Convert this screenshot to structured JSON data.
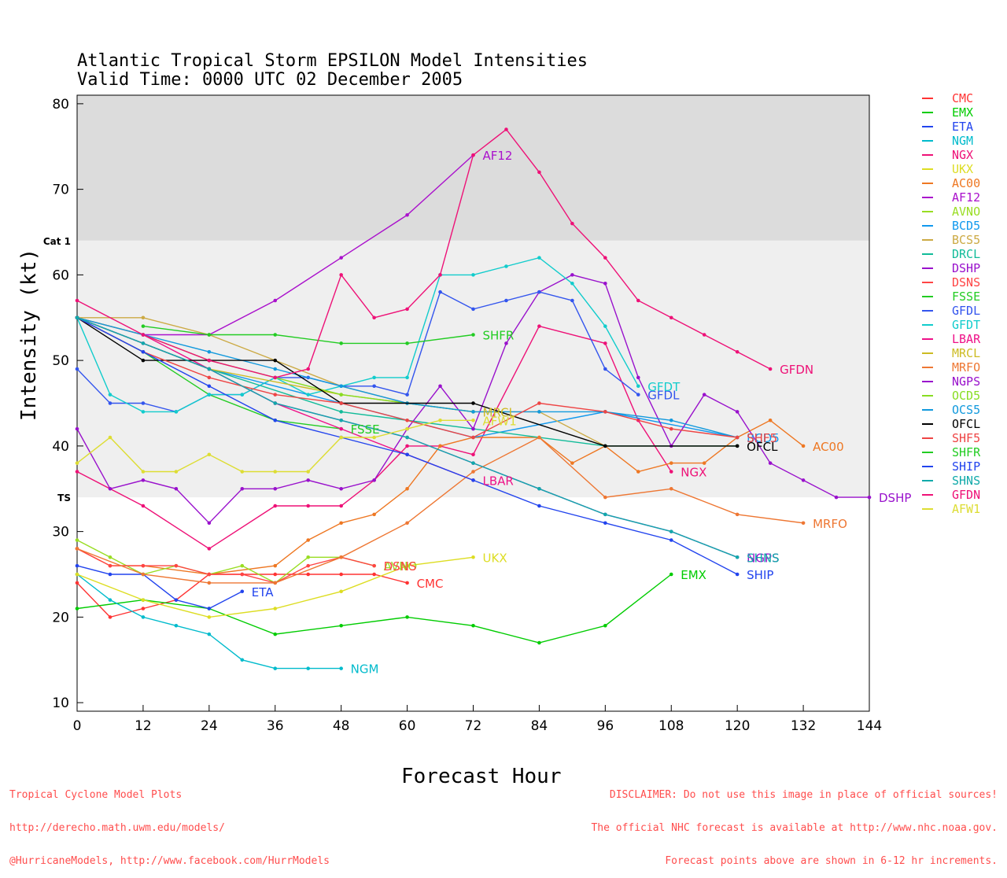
{
  "title": {
    "line1": "Atlantic Tropical Storm EPSILON Model Intensities",
    "line2": "Valid Time: 0000 UTC 02 December 2005"
  },
  "footer": {
    "left": [
      "Tropical Cyclone Model Plots",
      "http://derecho.math.uwm.edu/models/",
      "@HurricaneModels, http://www.facebook.com/HurrModels"
    ],
    "right": [
      "DISCLAIMER: Do not use this image in place of official sources!",
      "The official NHC forecast is available at http://www.nhc.noaa.gov.",
      "Forecast points above are shown in 6-12 hr increments."
    ]
  },
  "chart_data": {
    "type": "line",
    "title": "Atlantic Tropical Storm EPSILON Model Intensities",
    "xlabel": "Forecast Hour",
    "ylabel": "Intensity (kt)",
    "xlim": [
      0,
      144
    ],
    "ylim": [
      9,
      81
    ],
    "xticks": [
      0,
      12,
      24,
      36,
      48,
      60,
      72,
      84,
      96,
      108,
      120,
      132,
      144
    ],
    "yticks": [
      10,
      20,
      30,
      40,
      50,
      60,
      70,
      80
    ],
    "bands": [
      {
        "label": "Cat 1",
        "from": 64,
        "to": 81,
        "color": "#dcdcdc"
      },
      {
        "label": "TS",
        "from": 34,
        "to": 64,
        "color": "#efefef"
      }
    ],
    "grid": false,
    "legend_position": "right",
    "series": [
      {
        "name": "CMC",
        "color": "#ff3333",
        "x": [
          0,
          6,
          12,
          18,
          24,
          30,
          36,
          42,
          48,
          54,
          60
        ],
        "y": [
          24,
          20,
          21,
          22,
          25,
          25,
          25,
          25,
          25,
          25,
          24
        ]
      },
      {
        "name": "EMX",
        "color": "#00cc00",
        "x": [
          0,
          12,
          24,
          36,
          48,
          60,
          72,
          84,
          96,
          108
        ],
        "y": [
          21,
          22,
          21,
          18,
          19,
          20,
          19,
          17,
          19,
          25
        ]
      },
      {
        "name": "ETA",
        "color": "#2244ee",
        "x": [
          0,
          6,
          12,
          18,
          24,
          30
        ],
        "y": [
          26,
          25,
          25,
          22,
          21,
          23
        ]
      },
      {
        "name": "NGM",
        "color": "#00bbcc",
        "x": [
          0,
          6,
          12,
          18,
          24,
          30,
          36,
          42,
          48
        ],
        "y": [
          25,
          22,
          20,
          19,
          18,
          15,
          14,
          14,
          14
        ]
      },
      {
        "name": "NGX",
        "color": "#ee1177",
        "x": [
          0,
          12,
          24,
          36,
          42,
          48,
          54,
          60,
          66,
          72,
          84,
          96,
          102,
          108
        ],
        "y": [
          37,
          33,
          28,
          33,
          33,
          33,
          36,
          40,
          40,
          39,
          54,
          52,
          43,
          37
        ]
      },
      {
        "name": "UKX",
        "color": "#dddd22",
        "x": [
          0,
          12,
          24,
          36,
          48,
          60,
          72
        ],
        "y": [
          25,
          22,
          20,
          21,
          23,
          26,
          27
        ]
      },
      {
        "name": "AC00",
        "color": "#ee7722",
        "x": [
          0,
          6,
          12,
          24,
          36,
          42,
          48,
          54,
          60,
          66,
          72,
          84,
          90,
          96,
          102,
          108,
          114,
          120,
          126,
          132
        ],
        "y": [
          28,
          26,
          26,
          25,
          26,
          29,
          31,
          32,
          35,
          40,
          41,
          41,
          38,
          40,
          37,
          38,
          38,
          41,
          43,
          40
        ]
      },
      {
        "name": "AF12",
        "color": "#aa11cc",
        "x": [
          0,
          12,
          24,
          36,
          48,
          60,
          72
        ],
        "y": [
          55,
          53,
          53,
          57,
          62,
          67,
          74
        ]
      },
      {
        "name": "AVNO",
        "color": "#99dd22",
        "x": [
          0,
          6,
          12,
          18,
          24,
          30,
          36,
          42,
          48,
          54
        ],
        "y": [
          29,
          27,
          25,
          26,
          25,
          26,
          24,
          27,
          27,
          26
        ]
      },
      {
        "name": "BCD5",
        "color": "#1199ee",
        "x": [
          0,
          24,
          48,
          72,
          96,
          120
        ],
        "y": [
          55,
          49,
          45,
          41,
          44,
          41
        ]
      },
      {
        "name": "BCS5",
        "color": "#ccaa44",
        "x": [
          0,
          12,
          24,
          36,
          48,
          60,
          72,
          84,
          96,
          120
        ],
        "y": [
          55,
          55,
          53,
          50,
          47,
          45,
          44,
          44,
          40,
          40
        ]
      },
      {
        "name": "DRCL",
        "color": "#11bb99",
        "x": [
          0,
          24,
          48,
          72,
          96,
          120
        ],
        "y": [
          55,
          49,
          44,
          42,
          40,
          40
        ]
      },
      {
        "name": "DSHP",
        "color": "#9911cc",
        "x": [
          0,
          6,
          12,
          18,
          24,
          30,
          36,
          42,
          48,
          54,
          60,
          66,
          72,
          78,
          84,
          90,
          96,
          102,
          108,
          114,
          120,
          126,
          132,
          138,
          144
        ],
        "y": [
          42,
          35,
          36,
          35,
          31,
          35,
          35,
          36,
          35,
          36,
          42,
          47,
          42,
          52,
          58,
          60,
          59,
          48,
          40,
          46,
          44,
          38,
          36,
          34,
          34
        ]
      },
      {
        "name": "DSNS",
        "color": "#ff4444",
        "x": [
          0,
          6,
          12,
          18,
          24,
          30,
          36,
          42,
          48,
          54
        ],
        "y": [
          28,
          26,
          26,
          26,
          25,
          25,
          24,
          26,
          27,
          26
        ]
      },
      {
        "name": "FSSE",
        "color": "#22cc22",
        "x": [
          0,
          12,
          24,
          36,
          48
        ],
        "y": [
          55,
          51,
          46,
          43,
          42
        ]
      },
      {
        "name": "GFDL",
        "color": "#3355ee",
        "x": [
          0,
          6,
          12,
          18,
          24,
          30,
          36,
          42,
          48,
          54,
          60,
          66,
          72,
          78,
          84,
          90,
          96,
          102
        ],
        "y": [
          49,
          45,
          45,
          44,
          46,
          46,
          48,
          48,
          47,
          47,
          46,
          58,
          56,
          57,
          58,
          57,
          49,
          46
        ]
      },
      {
        "name": "GFDT",
        "color": "#11cccc",
        "x": [
          0,
          6,
          12,
          18,
          24,
          30,
          36,
          42,
          48,
          54,
          60,
          66,
          72,
          78,
          84,
          90,
          96,
          102
        ],
        "y": [
          55,
          46,
          44,
          44,
          46,
          46,
          48,
          46,
          47,
          48,
          48,
          60,
          60,
          61,
          62,
          59,
          54,
          47
        ]
      },
      {
        "name": "LBAR",
        "color": "#ee1188",
        "x": [
          0,
          12,
          24,
          36,
          48,
          60,
          72
        ],
        "y": [
          55,
          53,
          49,
          45,
          42,
          39,
          36
        ]
      },
      {
        "name": "MRCL",
        "color": "#ccbb22",
        "x": [
          0,
          24,
          48,
          72
        ],
        "y": [
          55,
          49,
          46,
          44
        ]
      },
      {
        "name": "MRFO",
        "color": "#ee7733",
        "x": [
          0,
          12,
          24,
          36,
          48,
          60,
          72,
          84,
          96,
          108,
          120,
          132
        ],
        "y": [
          28,
          25,
          24,
          24,
          27,
          31,
          37,
          41,
          34,
          35,
          32,
          31
        ]
      },
      {
        "name": "NGPS",
        "color": "#9911cc",
        "x": [
          0,
          12,
          24,
          36,
          48,
          60,
          72,
          84,
          96,
          108,
          120
        ],
        "y": [
          55,
          52,
          49,
          45,
          43,
          41,
          38,
          35,
          32,
          30,
          27
        ]
      },
      {
        "name": "OCD5",
        "color": "#88dd22",
        "x": [
          0,
          12,
          24,
          36,
          48,
          60,
          72
        ],
        "y": [
          55,
          53,
          50,
          48,
          46,
          45,
          44
        ]
      },
      {
        "name": "OCS5",
        "color": "#1199dd",
        "x": [
          0,
          12,
          24,
          36,
          48,
          60,
          72,
          84,
          96,
          108,
          120
        ],
        "y": [
          55,
          53,
          51,
          49,
          47,
          45,
          44,
          44,
          44,
          43,
          41
        ]
      },
      {
        "name": "OFCL",
        "color": "#000000",
        "x": [
          0,
          12,
          24,
          36,
          48,
          72,
          96,
          120
        ],
        "y": [
          55,
          50,
          50,
          50,
          45,
          45,
          40,
          40
        ]
      },
      {
        "name": "SHF5",
        "color": "#ee4444",
        "x": [
          0,
          12,
          24,
          36,
          48,
          60,
          72,
          84,
          96,
          108,
          120
        ],
        "y": [
          55,
          51,
          48,
          46,
          45,
          43,
          41,
          45,
          44,
          42,
          41
        ]
      },
      {
        "name": "SHFR",
        "color": "#22cc22",
        "x": [
          12,
          24,
          36,
          48,
          60,
          72
        ],
        "y": [
          54,
          53,
          53,
          52,
          52,
          53
        ]
      },
      {
        "name": "SHIP",
        "color": "#2244ee",
        "x": [
          0,
          12,
          24,
          36,
          48,
          60,
          72,
          84,
          96,
          108,
          120
        ],
        "y": [
          55,
          51,
          47,
          43,
          41,
          39,
          36,
          33,
          31,
          29,
          25
        ]
      },
      {
        "name": "SHNS",
        "color": "#11aaaa",
        "x": [
          0,
          12,
          24,
          36,
          48,
          60,
          72,
          84,
          96,
          108,
          120
        ],
        "y": [
          55,
          52,
          49,
          45,
          43,
          41,
          38,
          35,
          32,
          30,
          27
        ]
      },
      {
        "name": "GFDN",
        "color": "#ee1177",
        "x": [
          0,
          12,
          24,
          36,
          42,
          48,
          54,
          60,
          66,
          72,
          78,
          84,
          90,
          96,
          102,
          108,
          114,
          120,
          126
        ],
        "y": [
          57,
          53,
          50,
          48,
          49,
          60,
          55,
          56,
          60,
          74,
          77,
          72,
          66,
          62,
          57,
          55,
          53,
          51,
          49
        ]
      },
      {
        "name": "AFW1",
        "color": "#dddd33",
        "x": [
          0,
          6,
          12,
          18,
          24,
          30,
          36,
          42,
          48,
          54,
          60,
          66,
          72
        ],
        "y": [
          38,
          41,
          37,
          37,
          39,
          37,
          37,
          37,
          41,
          41,
          42,
          43,
          43
        ]
      }
    ],
    "end_labels": [
      {
        "text": "CMC",
        "series": "CMC"
      },
      {
        "text": "EMX",
        "series": "EMX"
      },
      {
        "text": "ETA",
        "series": "ETA"
      },
      {
        "text": "NGM",
        "series": "NGM"
      },
      {
        "text": "NGX",
        "series": "NGX"
      },
      {
        "text": "UKX",
        "series": "UKX"
      },
      {
        "text": "AC00",
        "series": "AC00"
      },
      {
        "text": "AF12",
        "series": "AF12"
      },
      {
        "text": "AVNO",
        "series": "AVNO"
      },
      {
        "text": "BCD5",
        "series": "BCD5"
      },
      {
        "text": "DSHP",
        "series": "DSHP"
      },
      {
        "text": "DSNS",
        "series": "DSNS"
      },
      {
        "text": "FSSE",
        "series": "FSSE"
      },
      {
        "text": "GFDL",
        "series": "GFDL"
      },
      {
        "text": "GFDT",
        "series": "GFDT"
      },
      {
        "text": "LBAR",
        "series": "LBAR"
      },
      {
        "text": "MRCL",
        "series": "MRCL"
      },
      {
        "text": "MRFO",
        "series": "MRFO"
      },
      {
        "text": "NGPS",
        "series": "NGPS"
      },
      {
        "text": "OFCL",
        "series": "OFCL"
      },
      {
        "text": "SHF5",
        "series": "SHF5"
      },
      {
        "text": "SHFR",
        "series": "SHFR"
      },
      {
        "text": "SHIP",
        "series": "SHIP"
      },
      {
        "text": "SHNS",
        "series": "SHNS"
      },
      {
        "text": "GFDN",
        "series": "GFDN"
      },
      {
        "text": "AFW1",
        "series": "AFW1"
      }
    ]
  }
}
